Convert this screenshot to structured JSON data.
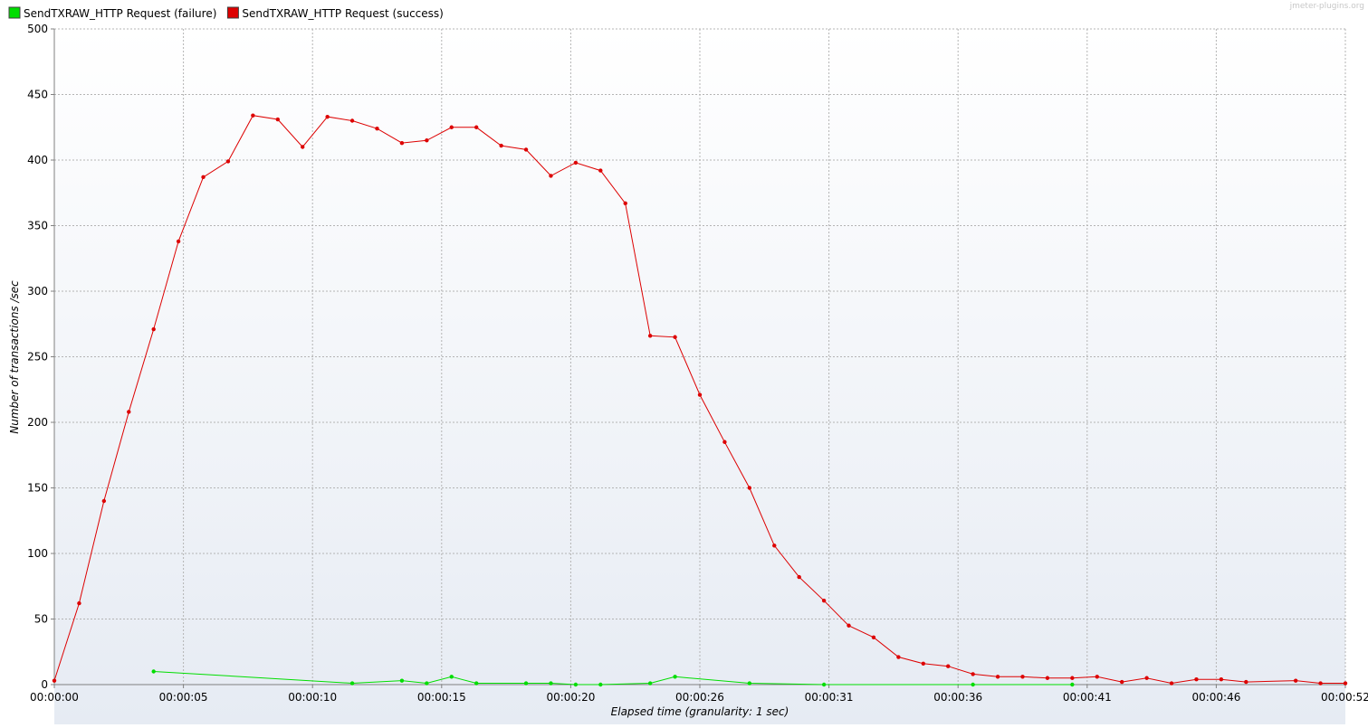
{
  "watermark": "jmeter-plugins.org",
  "chart_data": {
    "type": "line",
    "xlabel": "Elapsed time (granularity: 1 sec)",
    "ylabel": "Number of transactions /sec",
    "ylim": [
      0,
      500
    ],
    "yticks": [
      0,
      50,
      100,
      150,
      200,
      250,
      300,
      350,
      400,
      450,
      500
    ],
    "xlim": [
      0,
      52
    ],
    "xticks": [
      {
        "value": 0,
        "label": "00:00:00"
      },
      {
        "value": 5.2,
        "label": "00:00:05"
      },
      {
        "value": 10.4,
        "label": "00:00:10"
      },
      {
        "value": 15.6,
        "label": "00:00:15"
      },
      {
        "value": 20.8,
        "label": "00:00:20"
      },
      {
        "value": 26.0,
        "label": "00:00:26"
      },
      {
        "value": 31.2,
        "label": "00:00:31"
      },
      {
        "value": 36.4,
        "label": "00:00:36"
      },
      {
        "value": 41.6,
        "label": "00:00:41"
      },
      {
        "value": 46.8,
        "label": "00:00:46"
      },
      {
        "value": 52,
        "label": "00:00:52"
      }
    ],
    "grid": true,
    "legend_position": "top-left",
    "series": [
      {
        "name": "SendTXRAW_HTTP Request (failure)",
        "color": "#00dd00",
        "x": [
          4,
          12,
          14,
          15,
          16,
          17,
          19,
          20,
          21,
          22,
          24,
          25,
          28,
          31,
          37,
          41
        ],
        "y": [
          10,
          1,
          3,
          1,
          6,
          1,
          1,
          1,
          0,
          0,
          1,
          6,
          1,
          0,
          0,
          0
        ]
      },
      {
        "name": "SendTXRAW_HTTP Request (success)",
        "color": "#dd0000",
        "x": [
          0,
          1,
          2,
          3,
          4,
          5,
          6,
          7,
          8,
          9,
          10,
          11,
          12,
          13,
          14,
          15,
          16,
          17,
          18,
          19,
          20,
          21,
          22,
          23,
          24,
          25,
          26,
          27,
          28,
          29,
          30,
          31,
          32,
          33,
          34,
          35,
          36,
          37,
          38,
          39,
          40,
          41,
          42,
          43,
          44,
          45,
          46,
          47,
          48,
          50,
          51,
          52
        ],
        "y": [
          3,
          62,
          140,
          208,
          271,
          338,
          387,
          399,
          434,
          431,
          410,
          433,
          430,
          424,
          413,
          415,
          425,
          425,
          411,
          408,
          388,
          398,
          392,
          367,
          266,
          265,
          221,
          185,
          150,
          106,
          82,
          64,
          45,
          36,
          21,
          16,
          14,
          8,
          6,
          6,
          5,
          5,
          6,
          2,
          5,
          1,
          4,
          4,
          2,
          3,
          1,
          1
        ]
      }
    ]
  }
}
